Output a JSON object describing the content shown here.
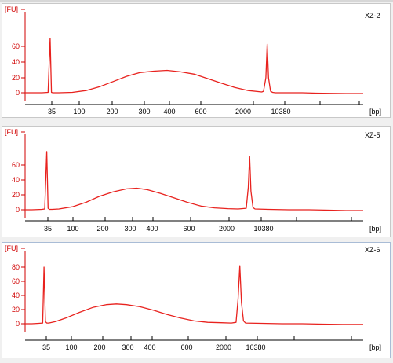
{
  "colors": {
    "trace": "#e8221e",
    "axis_red": "#d00000",
    "axis_black": "#000000"
  },
  "chart_data": [
    {
      "type": "line",
      "title": "XZ-2",
      "ylabel": "[FU]",
      "xlabel": "[bp]",
      "yticks": [
        "0",
        "20",
        "40",
        "60"
      ],
      "ylim": [
        -8,
        80
      ],
      "xticks": [
        "35",
        "100",
        "200",
        "300",
        "400",
        "600",
        "2000",
        "10380"
      ],
      "series": [
        {
          "x": [
            0,
            0.02,
            0.05,
            0.068,
            0.074,
            0.078,
            0.082,
            0.086,
            0.092,
            0.1,
            0.14,
            0.18,
            0.22,
            0.26,
            0.3,
            0.34,
            0.38,
            0.42,
            0.46,
            0.5,
            0.54,
            0.58,
            0.62,
            0.66,
            0.7,
            0.705,
            0.712,
            0.716,
            0.72,
            0.726,
            0.732,
            0.74,
            0.78,
            0.82,
            0.86,
            0.9,
            0.95,
            1.0
          ],
          "y": [
            0,
            0,
            0,
            0.5,
            73,
            0.5,
            0,
            0,
            0,
            0,
            0.5,
            3,
            8,
            15,
            22,
            27,
            29,
            30,
            28,
            25,
            19,
            13,
            7,
            3,
            1,
            2,
            20,
            65,
            20,
            2,
            0.5,
            0,
            0,
            0,
            -0.5,
            -0.8,
            -1,
            -1
          ]
        }
      ]
    },
    {
      "type": "line",
      "title": "XZ-5",
      "ylabel": "[FU]",
      "xlabel": "[bp]",
      "yticks": [
        "0",
        "20",
        "40",
        "60"
      ],
      "ylim": [
        -8,
        82
      ],
      "xticks": [
        "35",
        "100",
        "200",
        "300",
        "400",
        "600",
        "2000",
        "10380"
      ],
      "series": [
        {
          "x": [
            0,
            0.02,
            0.05,
            0.058,
            0.064,
            0.068,
            0.072,
            0.08,
            0.1,
            0.14,
            0.18,
            0.22,
            0.26,
            0.3,
            0.33,
            0.36,
            0.4,
            0.44,
            0.48,
            0.52,
            0.56,
            0.6,
            0.63,
            0.654,
            0.66,
            0.664,
            0.668,
            0.674,
            0.68,
            0.72,
            0.78,
            0.84,
            0.9,
            0.95,
            1.0
          ],
          "y": [
            0,
            0,
            0.5,
            1,
            78,
            2,
            0.5,
            0.5,
            1,
            4,
            10,
            18,
            24,
            28,
            29,
            27,
            22,
            16,
            10,
            5,
            2.5,
            1.5,
            1,
            2,
            30,
            72,
            25,
            3,
            1,
            0.5,
            0,
            0,
            -0.5,
            -1,
            -1
          ]
        }
      ]
    },
    {
      "type": "line",
      "title": "XZ-6",
      "ylabel": "[FU]",
      "xlabel": "[bp]",
      "yticks": [
        "0",
        "20",
        "40",
        "60",
        "80"
      ],
      "ylim": [
        -8,
        92
      ],
      "xticks": [
        "35",
        "100",
        "200",
        "300",
        "400",
        "600",
        "2000",
        "10380"
      ],
      "series": [
        {
          "x": [
            0,
            0.02,
            0.04,
            0.052,
            0.056,
            0.06,
            0.064,
            0.07,
            0.09,
            0.12,
            0.16,
            0.2,
            0.24,
            0.27,
            0.3,
            0.34,
            0.38,
            0.42,
            0.46,
            0.5,
            0.54,
            0.58,
            0.61,
            0.624,
            0.63,
            0.635,
            0.64,
            0.646,
            0.652,
            0.7,
            0.76,
            0.82,
            0.88,
            0.94,
            1.0
          ],
          "y": [
            0,
            0,
            0.5,
            1,
            80,
            3,
            1,
            1,
            3,
            8,
            16,
            23,
            27,
            28,
            27,
            24,
            19,
            13,
            8,
            4,
            2,
            1.5,
            1,
            2,
            35,
            82,
            30,
            4,
            1,
            0.5,
            0,
            0,
            -0.5,
            -1,
            -1
          ]
        }
      ]
    }
  ]
}
